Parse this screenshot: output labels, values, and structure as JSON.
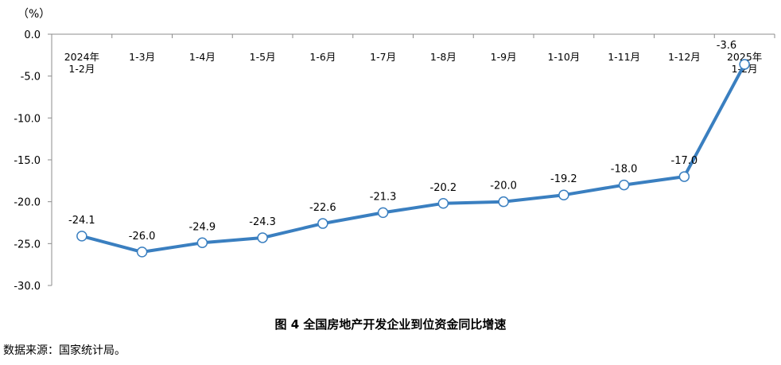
{
  "chart_data": {
    "type": "line",
    "title": "图 4 全国房地产开发企业到位资金同比增速",
    "ylabel": "（%）",
    "xlabel": "",
    "categories": [
      [
        "2024年",
        "1-2月"
      ],
      [
        "1-3月"
      ],
      [
        "1-4月"
      ],
      [
        "1-5月"
      ],
      [
        "1-6月"
      ],
      [
        "1-7月"
      ],
      [
        "1-8月"
      ],
      [
        "1-9月"
      ],
      [
        "1-10月"
      ],
      [
        "1-11月"
      ],
      [
        "1-12月"
      ],
      [
        "2025年",
        "1-2月"
      ]
    ],
    "values": [
      -24.1,
      -26.0,
      -24.9,
      -24.3,
      -22.6,
      -21.3,
      -20.2,
      -20.0,
      -19.2,
      -18.0,
      -17.0,
      -3.6
    ],
    "value_labels": [
      "-24.1",
      "-26.0",
      "-24.9",
      "-24.3",
      "-22.6",
      "-21.3",
      "-20.2",
      "-20.0",
      "-19.2",
      "-18.0",
      "-17.0",
      "-3.6"
    ],
    "yticks": [
      "0.0",
      "-5.0",
      "-10.0",
      "-15.0",
      "-20.0",
      "-25.0",
      "-30.0"
    ],
    "ylim": [
      -30,
      0
    ],
    "grid": false,
    "line_color": "#3a7fc0",
    "marker_fill": "#ffffff"
  },
  "source": "数据来源：国家统计局。"
}
